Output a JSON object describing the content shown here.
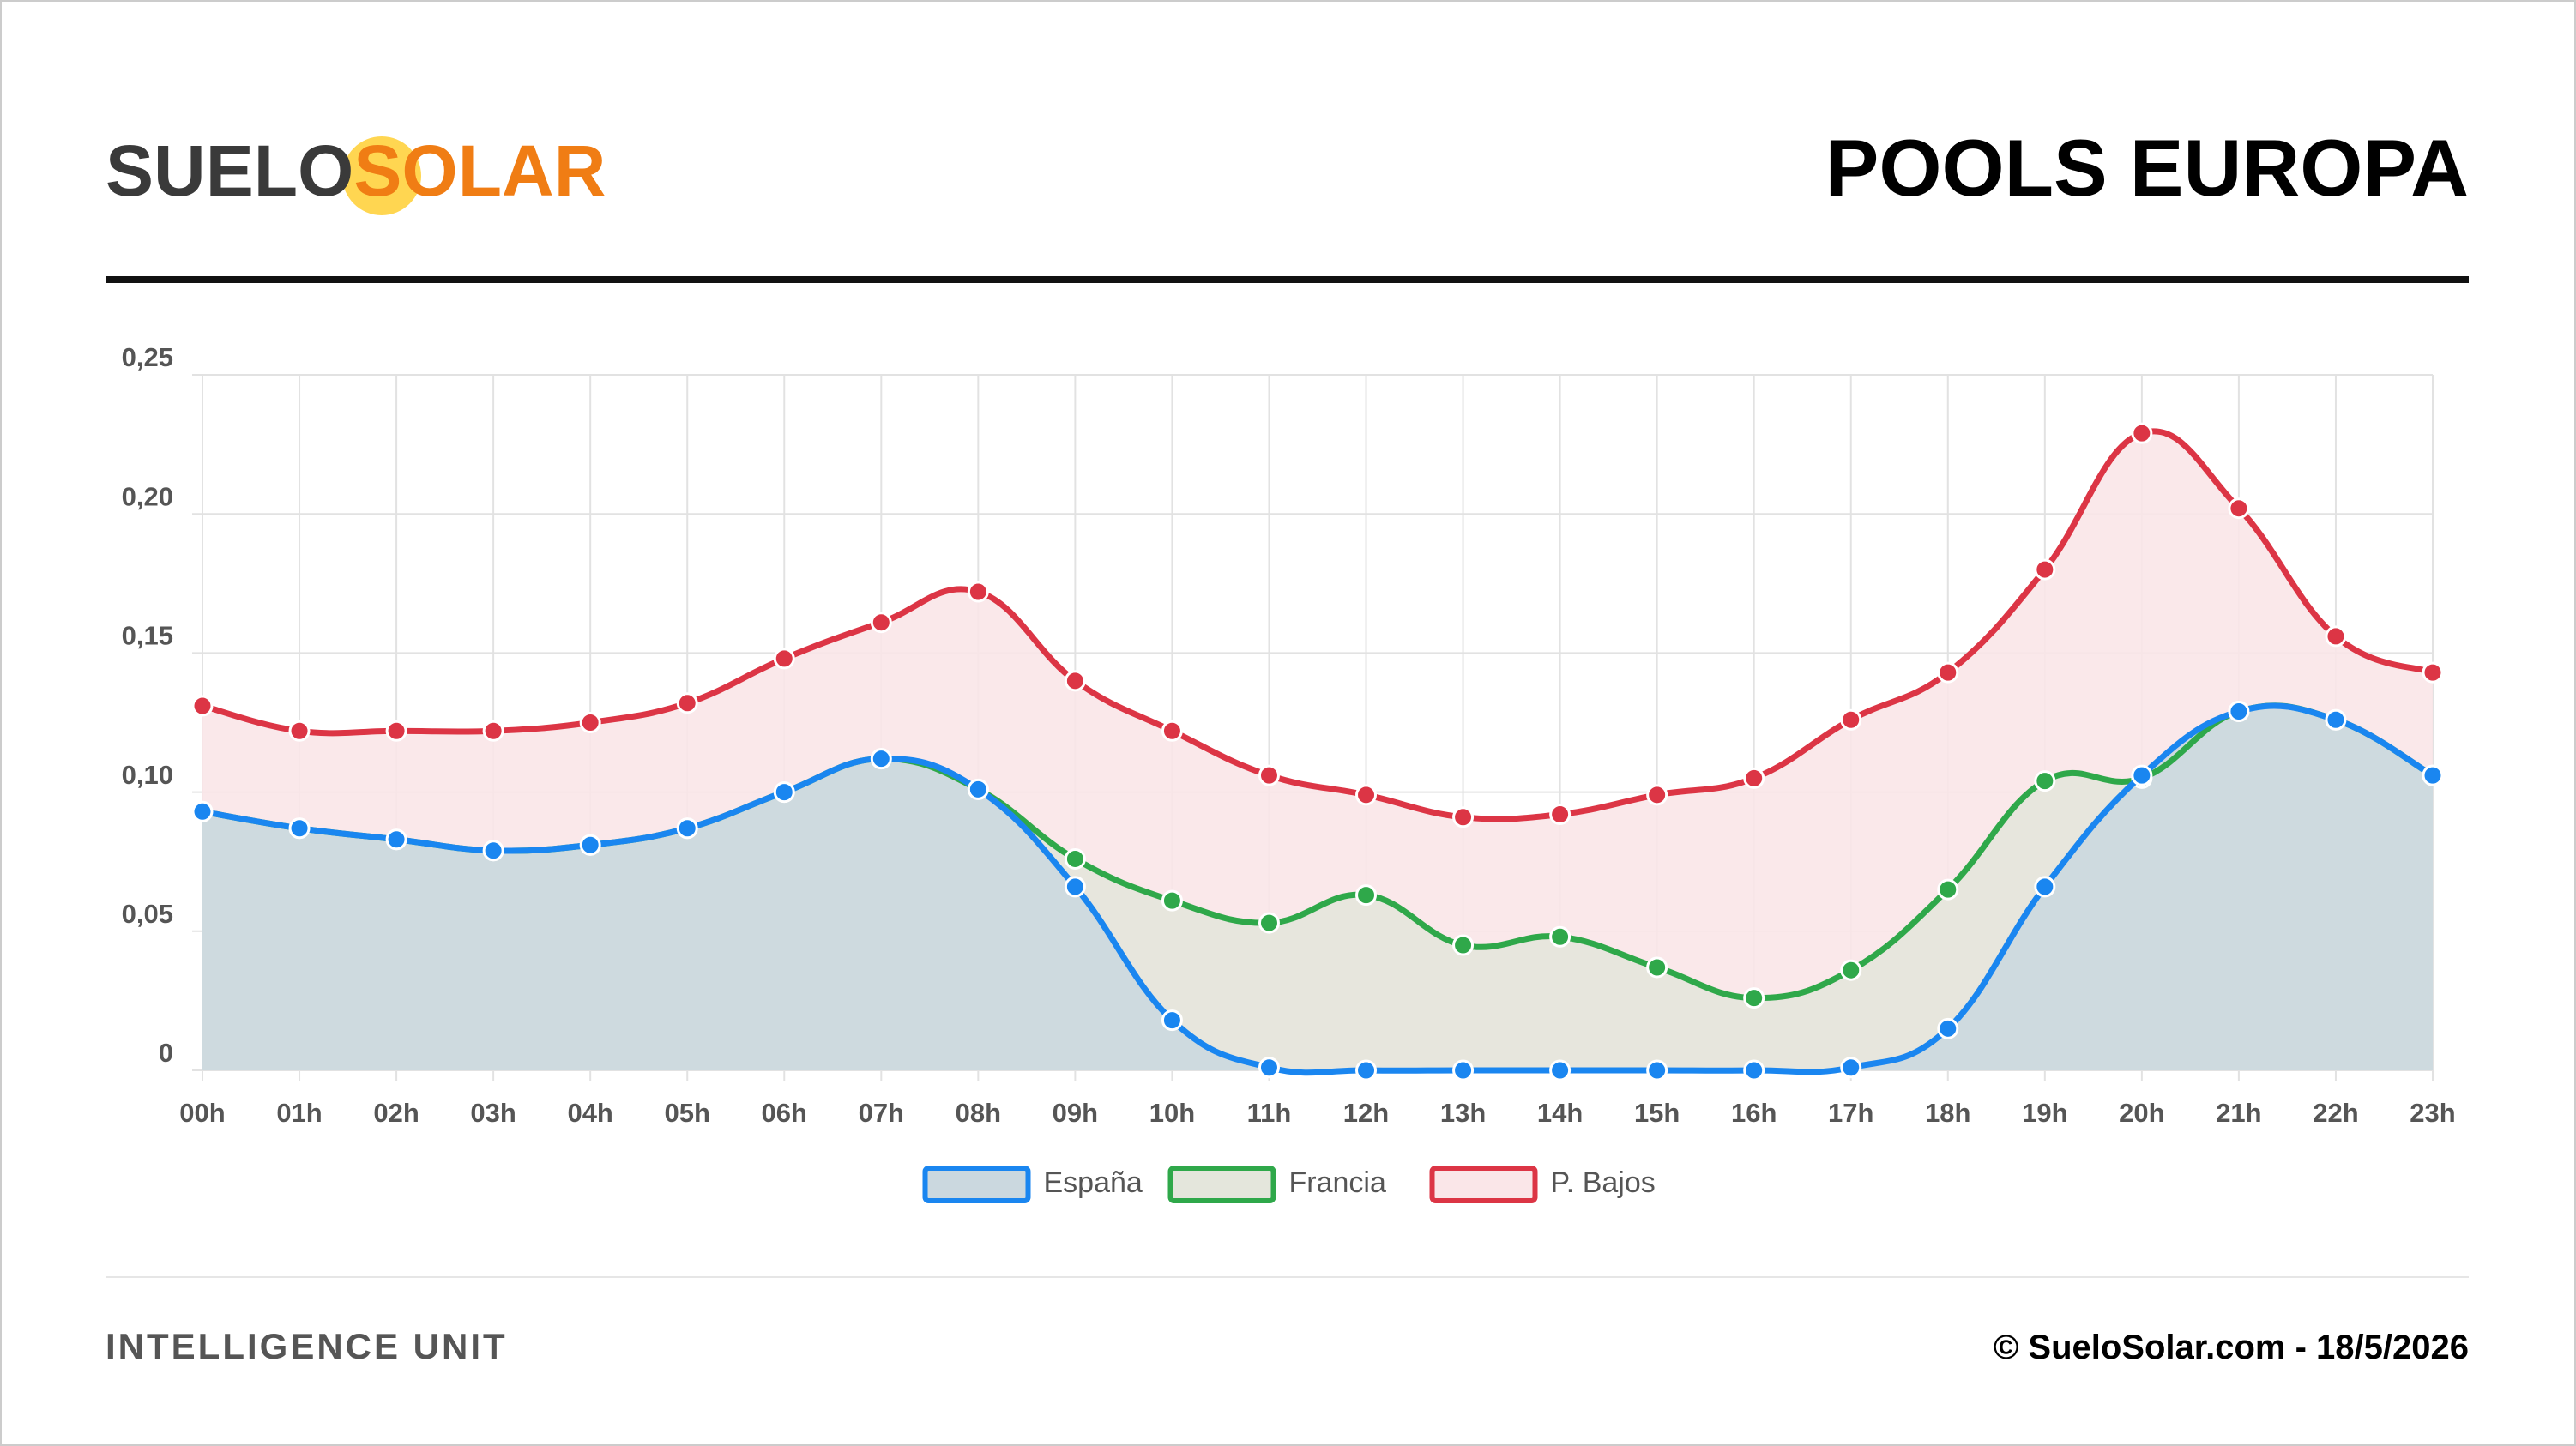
{
  "header": {
    "logo": [
      "SUELO",
      "SOLAR"
    ],
    "title": "POOLS EUROPA"
  },
  "footer": {
    "left": "INTELLIGENCE UNIT",
    "right": "© SueloSolar.com - 18/5/2026"
  },
  "chart_data": {
    "type": "line",
    "categories": [
      "00h",
      "01h",
      "02h",
      "03h",
      "04h",
      "05h",
      "06h",
      "07h",
      "08h",
      "09h",
      "10h",
      "11h",
      "12h",
      "13h",
      "14h",
      "15h",
      "16h",
      "17h",
      "18h",
      "19h",
      "20h",
      "21h",
      "22h",
      "23h"
    ],
    "series": [
      {
        "name": "España",
        "color": "#1a86f0",
        "fill": "#cbd8df",
        "values": [
          0.093,
          0.087,
          0.083,
          0.079,
          0.081,
          0.087,
          0.1,
          0.112,
          0.101,
          0.066,
          0.018,
          0.001,
          0,
          0,
          0,
          0,
          0,
          0.001,
          0.015,
          0.066,
          0.106,
          0.129,
          0.126,
          0.106
        ]
      },
      {
        "name": "Francia",
        "color": "#2fa84a",
        "fill": "#e4e6dc",
        "values": [
          0.093,
          0.087,
          0.083,
          0.079,
          0.081,
          0.087,
          0.1,
          0.112,
          0.101,
          0.076,
          0.061,
          0.053,
          0.063,
          0.045,
          0.048,
          0.037,
          0.026,
          0.036,
          0.065,
          0.104,
          0.105,
          0.129,
          0.126,
          0.106
        ]
      },
      {
        "name": "P. Bajos",
        "color": "#dc3545",
        "fill": "#fae6e8",
        "values": [
          0.131,
          0.122,
          0.122,
          0.122,
          0.125,
          0.132,
          0.148,
          0.161,
          0.172,
          0.14,
          0.122,
          0.106,
          0.099,
          0.091,
          0.092,
          0.099,
          0.105,
          0.126,
          0.143,
          0.18,
          0.229,
          0.202,
          0.156,
          0.143
        ]
      }
    ],
    "ylim": [
      0,
      0.25
    ],
    "yticks": [
      0,
      {
        "value": 0.05,
        "label": "0,05"
      },
      {
        "value": 0.1,
        "label": "0,10"
      },
      {
        "value": 0.15,
        "label": "0,15"
      },
      {
        "value": 0.2,
        "label": "0,20"
      },
      {
        "value": 0.25,
        "label": "0,25"
      }
    ],
    "grid": true,
    "legend": "bottom"
  }
}
